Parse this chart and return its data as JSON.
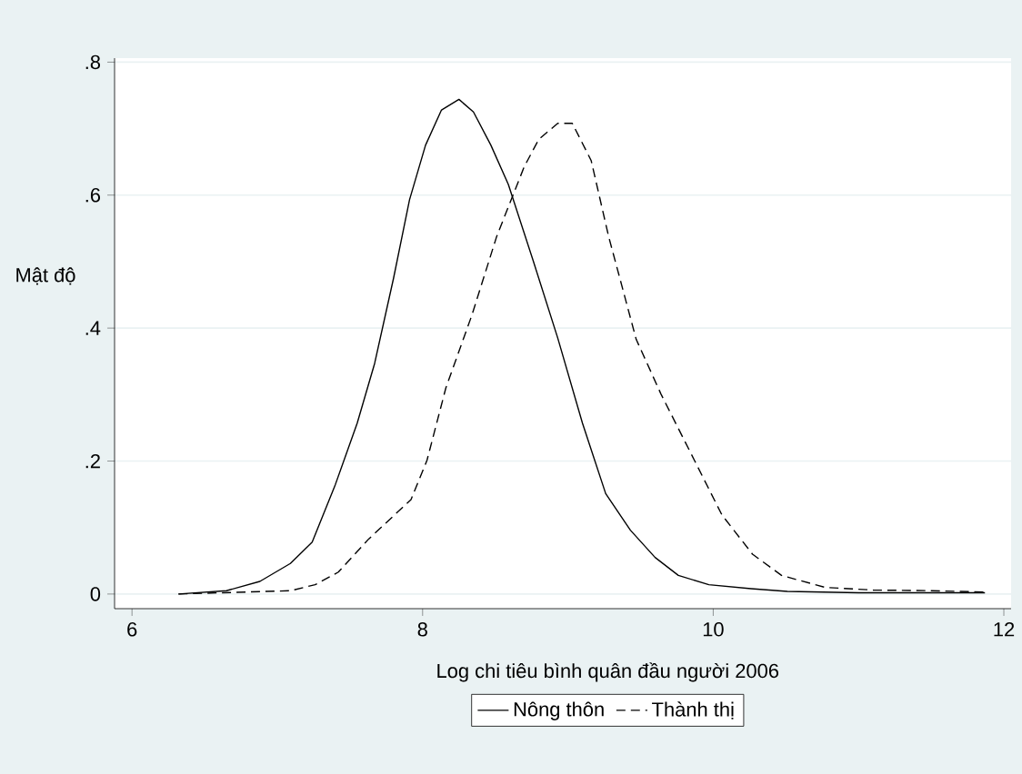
{
  "chart_data": {
    "type": "line",
    "xlabel": "Log chi tiêu bình quân đầu người 2006",
    "ylabel": "Mật độ",
    "xlim": [
      5.88,
      12.05
    ],
    "ylim": [
      -0.022,
      0.806
    ],
    "xticks": [
      6,
      8,
      10,
      12
    ],
    "yticks": [
      {
        "value": 0,
        "label": "0"
      },
      {
        "value": 0.2,
        "label": ".2"
      },
      {
        "value": 0.4,
        "label": ".4"
      },
      {
        "value": 0.6,
        "label": ".6"
      },
      {
        "value": 0.8,
        "label": ".8"
      }
    ],
    "grid": "y",
    "legend": "bottom",
    "series": [
      {
        "name": "Nông thôn",
        "color": "#000000",
        "line_style": "solid",
        "x": [
          6.32,
          6.65,
          6.88,
          7.09,
          7.24,
          7.4,
          7.55,
          7.67,
          7.8,
          7.91,
          8.02,
          8.13,
          8.25,
          8.35,
          8.47,
          8.59,
          8.76,
          8.93,
          9.1,
          9.26,
          9.43,
          9.6,
          9.76,
          9.97,
          10.26,
          10.51,
          11.0,
          11.5,
          11.87
        ],
        "values": [
          0.0,
          0.005,
          0.019,
          0.046,
          0.078,
          0.165,
          0.257,
          0.347,
          0.475,
          0.593,
          0.675,
          0.728,
          0.744,
          0.725,
          0.675,
          0.616,
          0.502,
          0.385,
          0.257,
          0.151,
          0.096,
          0.055,
          0.028,
          0.014,
          0.008,
          0.004,
          0.002,
          0.002,
          0.002
        ]
      },
      {
        "name": "Thành thị",
        "color": "#000000",
        "line_style": "dashed",
        "x": [
          6.32,
          7.09,
          7.26,
          7.42,
          7.63,
          7.92,
          8.03,
          8.16,
          8.34,
          8.51,
          8.7,
          8.8,
          8.93,
          9.03,
          9.16,
          9.28,
          9.47,
          9.64,
          9.85,
          10.06,
          10.27,
          10.47,
          10.77,
          11.1,
          11.5,
          11.87
        ],
        "values": [
          0.0,
          0.005,
          0.014,
          0.033,
          0.083,
          0.142,
          0.201,
          0.31,
          0.42,
          0.538,
          0.643,
          0.684,
          0.708,
          0.708,
          0.652,
          0.538,
          0.383,
          0.301,
          0.21,
          0.119,
          0.06,
          0.028,
          0.01,
          0.006,
          0.005,
          0.003
        ]
      }
    ]
  }
}
